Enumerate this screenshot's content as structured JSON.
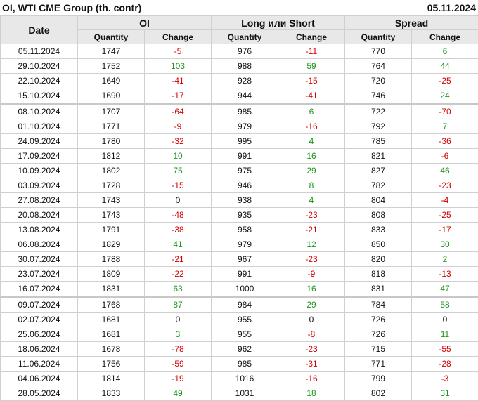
{
  "title": "OI, WTI CME Group (th. contr)",
  "date": "05.11.2024",
  "headers": {
    "date": "Date",
    "oi": "OI",
    "long_short": "Long или Short",
    "spread": "Spread",
    "quantity": "Quantity",
    "change": "Change"
  },
  "colors": {
    "negative": "#d40000",
    "positive": "#1f951f"
  },
  "rows": [
    [
      "05.11.2024",
      "1747",
      "-5",
      "976",
      "-11",
      "770",
      "6"
    ],
    [
      "29.10.2024",
      "1752",
      "103",
      "988",
      "59",
      "764",
      "44"
    ],
    [
      "22.10.2024",
      "1649",
      "-41",
      "928",
      "-15",
      "720",
      "-25"
    ],
    [
      "15.10.2024",
      "1690",
      "-17",
      "944",
      "-41",
      "746",
      "24"
    ],
    [
      "08.10.2024",
      "1707",
      "-64",
      "985",
      "6",
      "722",
      "-70"
    ],
    [
      "01.10.2024",
      "1771",
      "-9",
      "979",
      "-16",
      "792",
      "7"
    ],
    [
      "24.09.2024",
      "1780",
      "-32",
      "995",
      "4",
      "785",
      "-36"
    ],
    [
      "17.09.2024",
      "1812",
      "10",
      "991",
      "16",
      "821",
      "-6"
    ],
    [
      "10.09.2024",
      "1802",
      "75",
      "975",
      "29",
      "827",
      "46"
    ],
    [
      "03.09.2024",
      "1728",
      "-15",
      "946",
      "8",
      "782",
      "-23"
    ],
    [
      "27.08.2024",
      "1743",
      "0",
      "938",
      "4",
      "804",
      "-4"
    ],
    [
      "20.08.2024",
      "1743",
      "-48",
      "935",
      "-23",
      "808",
      "-25"
    ],
    [
      "13.08.2024",
      "1791",
      "-38",
      "958",
      "-21",
      "833",
      "-17"
    ],
    [
      "06.08.2024",
      "1829",
      "41",
      "979",
      "12",
      "850",
      "30"
    ],
    [
      "30.07.2024",
      "1788",
      "-21",
      "967",
      "-23",
      "820",
      "2"
    ],
    [
      "23.07.2024",
      "1809",
      "-22",
      "991",
      "-9",
      "818",
      "-13"
    ],
    [
      "16.07.2024",
      "1831",
      "63",
      "1000",
      "16",
      "831",
      "47"
    ],
    [
      "09.07.2024",
      "1768",
      "87",
      "984",
      "29",
      "784",
      "58"
    ],
    [
      "02.07.2024",
      "1681",
      "0",
      "955",
      "0",
      "726",
      "0"
    ],
    [
      "25.06.2024",
      "1681",
      "3",
      "955",
      "-8",
      "726",
      "11"
    ],
    [
      "18.06.2024",
      "1678",
      "-78",
      "962",
      "-23",
      "715",
      "-55"
    ],
    [
      "11.06.2024",
      "1756",
      "-59",
      "985",
      "-31",
      "771",
      "-28"
    ],
    [
      "04.06.2024",
      "1814",
      "-19",
      "1016",
      "-16",
      "799",
      "-3"
    ],
    [
      "28.05.2024",
      "1833",
      "49",
      "1031",
      "18",
      "802",
      "31"
    ]
  ]
}
